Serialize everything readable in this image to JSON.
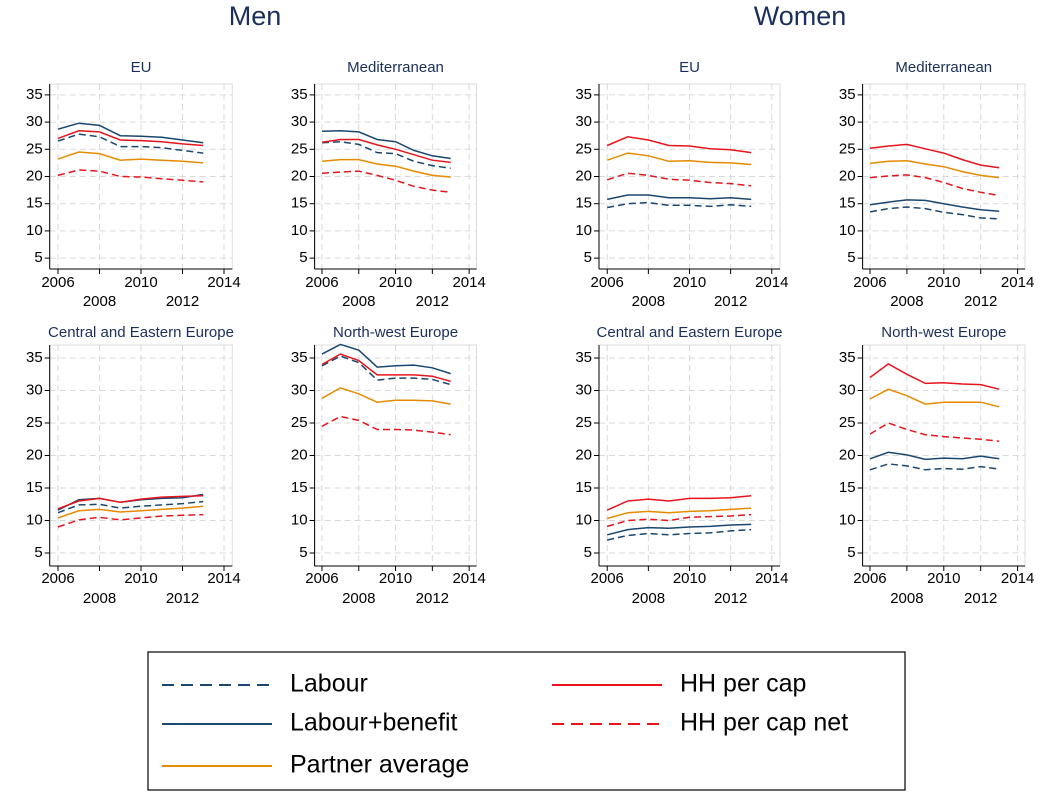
{
  "titles": [
    "Men",
    "Women"
  ],
  "legend": {
    "entries": [
      {
        "name": "Labour",
        "color": "#1a476f",
        "dash": true
      },
      {
        "name": "Labour+benefit",
        "color": "#1a476f",
        "dash": false
      },
      {
        "name": "Partner average",
        "color": "#e68a00",
        "dash": false
      },
      {
        "name": "HH per cap",
        "color": "#e8141c",
        "dash": false
      },
      {
        "name": "HH per cap net",
        "color": "#e8141c",
        "dash": true
      }
    ]
  },
  "chart_data": [
    {
      "type": "line",
      "title": "EU",
      "x": [
        2006,
        2007,
        2008,
        2009,
        2010,
        2011,
        2012,
        2013
      ],
      "xlim": [
        2005.6,
        2014.4
      ],
      "xticks": [
        2006,
        2008,
        2010,
        2012,
        2014
      ],
      "ylim": [
        3,
        37
      ],
      "yticks": [
        5,
        10,
        15,
        20,
        25,
        30,
        35
      ],
      "grid": true,
      "series": [
        {
          "values": [
            26.5,
            27.8,
            27.3,
            25.5,
            25.5,
            25.3,
            24.8,
            24.3
          ]
        },
        {
          "values": [
            28.7,
            29.8,
            29.4,
            27.5,
            27.4,
            27.2,
            26.7,
            26.2
          ]
        },
        {
          "values": [
            23.2,
            24.5,
            24.2,
            23.0,
            23.2,
            23.0,
            22.8,
            22.5
          ]
        },
        {
          "values": [
            27.0,
            28.4,
            28.2,
            26.7,
            26.6,
            26.4,
            26.0,
            25.7
          ]
        },
        {
          "values": [
            20.2,
            21.2,
            21.0,
            20.0,
            19.9,
            19.6,
            19.3,
            19.0
          ]
        }
      ]
    },
    {
      "type": "line",
      "title": "Mediterranean",
      "x": [
        2006,
        2007,
        2008,
        2009,
        2010,
        2011,
        2012,
        2013
      ],
      "xlim": [
        2005.6,
        2014.4
      ],
      "xticks": [
        2006,
        2008,
        2010,
        2012,
        2014
      ],
      "ylim": [
        3,
        37
      ],
      "yticks": [
        5,
        10,
        15,
        20,
        25,
        30,
        35
      ],
      "grid": true,
      "series": [
        {
          "values": [
            26.2,
            26.4,
            25.9,
            24.4,
            24.2,
            22.8,
            22.0,
            21.5
          ]
        },
        {
          "values": [
            28.3,
            28.4,
            28.2,
            26.8,
            26.4,
            24.8,
            23.8,
            23.3
          ]
        },
        {
          "values": [
            22.8,
            23.1,
            23.1,
            22.3,
            21.9,
            21.0,
            20.2,
            19.9
          ]
        },
        {
          "values": [
            26.3,
            26.8,
            26.8,
            25.8,
            25.0,
            24.0,
            23.0,
            22.6
          ]
        },
        {
          "values": [
            20.6,
            20.8,
            21.0,
            20.2,
            19.3,
            18.2,
            17.5,
            17.1
          ]
        }
      ]
    },
    {
      "type": "line",
      "title": "EU",
      "x": [
        2006,
        2007,
        2008,
        2009,
        2010,
        2011,
        2012,
        2013
      ],
      "xlim": [
        2005.6,
        2014.4
      ],
      "xticks": [
        2006,
        2008,
        2010,
        2012,
        2014
      ],
      "ylim": [
        3,
        37
      ],
      "yticks": [
        5,
        10,
        15,
        20,
        25,
        30,
        35
      ],
      "grid": true,
      "series": [
        {
          "values": [
            14.3,
            15.0,
            15.2,
            14.7,
            14.7,
            14.5,
            14.8,
            14.5
          ]
        },
        {
          "values": [
            15.8,
            16.6,
            16.6,
            16.1,
            16.1,
            15.9,
            16.1,
            15.8
          ]
        },
        {
          "values": [
            23.0,
            24.3,
            23.8,
            22.8,
            22.9,
            22.6,
            22.5,
            22.2
          ]
        },
        {
          "values": [
            25.7,
            27.3,
            26.7,
            25.7,
            25.6,
            25.1,
            24.9,
            24.4
          ]
        },
        {
          "values": [
            19.4,
            20.6,
            20.2,
            19.5,
            19.3,
            18.9,
            18.7,
            18.3
          ]
        }
      ]
    },
    {
      "type": "line",
      "title": "Mediterranean",
      "x": [
        2006,
        2007,
        2008,
        2009,
        2010,
        2011,
        2012,
        2013
      ],
      "xlim": [
        2005.6,
        2014.4
      ],
      "xticks": [
        2006,
        2008,
        2010,
        2012,
        2014
      ],
      "ylim": [
        3,
        37
      ],
      "yticks": [
        5,
        10,
        15,
        20,
        25,
        30,
        35
      ],
      "grid": true,
      "series": [
        {
          "values": [
            13.5,
            14.1,
            14.4,
            14.1,
            13.4,
            13.0,
            12.4,
            12.2
          ]
        },
        {
          "values": [
            14.8,
            15.3,
            15.7,
            15.6,
            15.0,
            14.4,
            13.9,
            13.6
          ]
        },
        {
          "values": [
            22.4,
            22.8,
            22.9,
            22.3,
            21.8,
            20.9,
            20.2,
            19.8
          ]
        },
        {
          "values": [
            25.2,
            25.6,
            25.9,
            25.1,
            24.3,
            23.1,
            22.1,
            21.6
          ]
        },
        {
          "values": [
            19.8,
            20.1,
            20.3,
            19.8,
            18.9,
            17.8,
            17.1,
            16.5
          ]
        }
      ]
    },
    {
      "type": "line",
      "title": "Central and Eastern Europe",
      "x": [
        2006,
        2007,
        2008,
        2009,
        2010,
        2011,
        2012,
        2013
      ],
      "xlim": [
        2005.6,
        2014.4
      ],
      "xticks": [
        2006,
        2008,
        2010,
        2012,
        2014
      ],
      "ylim": [
        3,
        37
      ],
      "yticks": [
        5,
        10,
        15,
        20,
        25,
        30,
        35
      ],
      "grid": true,
      "series": [
        {
          "values": [
            11.2,
            12.4,
            12.5,
            11.9,
            12.2,
            12.4,
            12.6,
            12.9
          ]
        },
        {
          "values": [
            11.6,
            13.2,
            13.4,
            12.8,
            13.2,
            13.4,
            13.5,
            14.0
          ]
        },
        {
          "values": [
            10.4,
            11.5,
            11.7,
            11.3,
            11.5,
            11.7,
            11.9,
            12.2
          ]
        },
        {
          "values": [
            11.8,
            13.0,
            13.4,
            12.8,
            13.3,
            13.6,
            13.7,
            13.8
          ]
        },
        {
          "values": [
            9.0,
            10.1,
            10.5,
            10.1,
            10.4,
            10.7,
            10.8,
            10.9
          ]
        }
      ]
    },
    {
      "type": "line",
      "title": "North-west Europe",
      "x": [
        2006,
        2007,
        2008,
        2009,
        2010,
        2011,
        2012,
        2013
      ],
      "xlim": [
        2005.6,
        2014.4
      ],
      "xticks": [
        2006,
        2008,
        2010,
        2012,
        2014
      ],
      "ylim": [
        3,
        37
      ],
      "yticks": [
        5,
        10,
        15,
        20,
        25,
        30,
        35
      ],
      "grid": true,
      "series": [
        {
          "values": [
            33.8,
            35.3,
            34.3,
            31.6,
            31.9,
            31.9,
            31.7,
            30.9
          ]
        },
        {
          "values": [
            35.6,
            37.1,
            36.2,
            33.6,
            33.8,
            33.9,
            33.5,
            32.6
          ]
        },
        {
          "values": [
            28.8,
            30.4,
            29.5,
            28.2,
            28.5,
            28.5,
            28.4,
            27.9
          ]
        },
        {
          "values": [
            34.0,
            35.6,
            34.6,
            32.4,
            32.4,
            32.4,
            32.2,
            31.4
          ]
        },
        {
          "values": [
            24.5,
            26.0,
            25.4,
            24.0,
            24.0,
            23.9,
            23.6,
            23.2
          ]
        }
      ]
    },
    {
      "type": "line",
      "title": "Central and Eastern Europe",
      "x": [
        2006,
        2007,
        2008,
        2009,
        2010,
        2011,
        2012,
        2013
      ],
      "xlim": [
        2005.6,
        2014.4
      ],
      "xticks": [
        2006,
        2008,
        2010,
        2012,
        2014
      ],
      "ylim": [
        3,
        37
      ],
      "yticks": [
        5,
        10,
        15,
        20,
        25,
        30,
        35
      ],
      "grid": true,
      "series": [
        {
          "values": [
            7.0,
            7.7,
            8.0,
            7.8,
            8.0,
            8.1,
            8.4,
            8.6
          ]
        },
        {
          "values": [
            7.8,
            8.6,
            8.9,
            8.8,
            9.0,
            9.1,
            9.3,
            9.4
          ]
        },
        {
          "values": [
            10.3,
            11.2,
            11.4,
            11.2,
            11.4,
            11.5,
            11.7,
            11.9
          ]
        },
        {
          "values": [
            11.6,
            13.0,
            13.3,
            13.0,
            13.4,
            13.4,
            13.5,
            13.8
          ]
        },
        {
          "values": [
            9.1,
            10.0,
            10.2,
            10.0,
            10.5,
            10.6,
            10.7,
            10.9
          ]
        }
      ]
    },
    {
      "type": "line",
      "title": "North-west Europe",
      "x": [
        2006,
        2007,
        2008,
        2009,
        2010,
        2011,
        2012,
        2013
      ],
      "xlim": [
        2005.6,
        2014.4
      ],
      "xticks": [
        2006,
        2008,
        2010,
        2012,
        2014
      ],
      "ylim": [
        3,
        37
      ],
      "yticks": [
        5,
        10,
        15,
        20,
        25,
        30,
        35
      ],
      "grid": true,
      "series": [
        {
          "values": [
            17.8,
            18.7,
            18.4,
            17.8,
            18.0,
            17.9,
            18.3,
            17.9
          ]
        },
        {
          "values": [
            19.5,
            20.5,
            20.1,
            19.4,
            19.6,
            19.5,
            19.9,
            19.5
          ]
        },
        {
          "values": [
            28.7,
            30.2,
            29.2,
            27.9,
            28.2,
            28.2,
            28.2,
            27.5
          ]
        },
        {
          "values": [
            32.0,
            34.1,
            32.5,
            31.1,
            31.2,
            31.0,
            30.9,
            30.2
          ]
        },
        {
          "values": [
            23.3,
            25.0,
            24.0,
            23.2,
            22.9,
            22.7,
            22.5,
            22.2
          ]
        }
      ]
    }
  ]
}
